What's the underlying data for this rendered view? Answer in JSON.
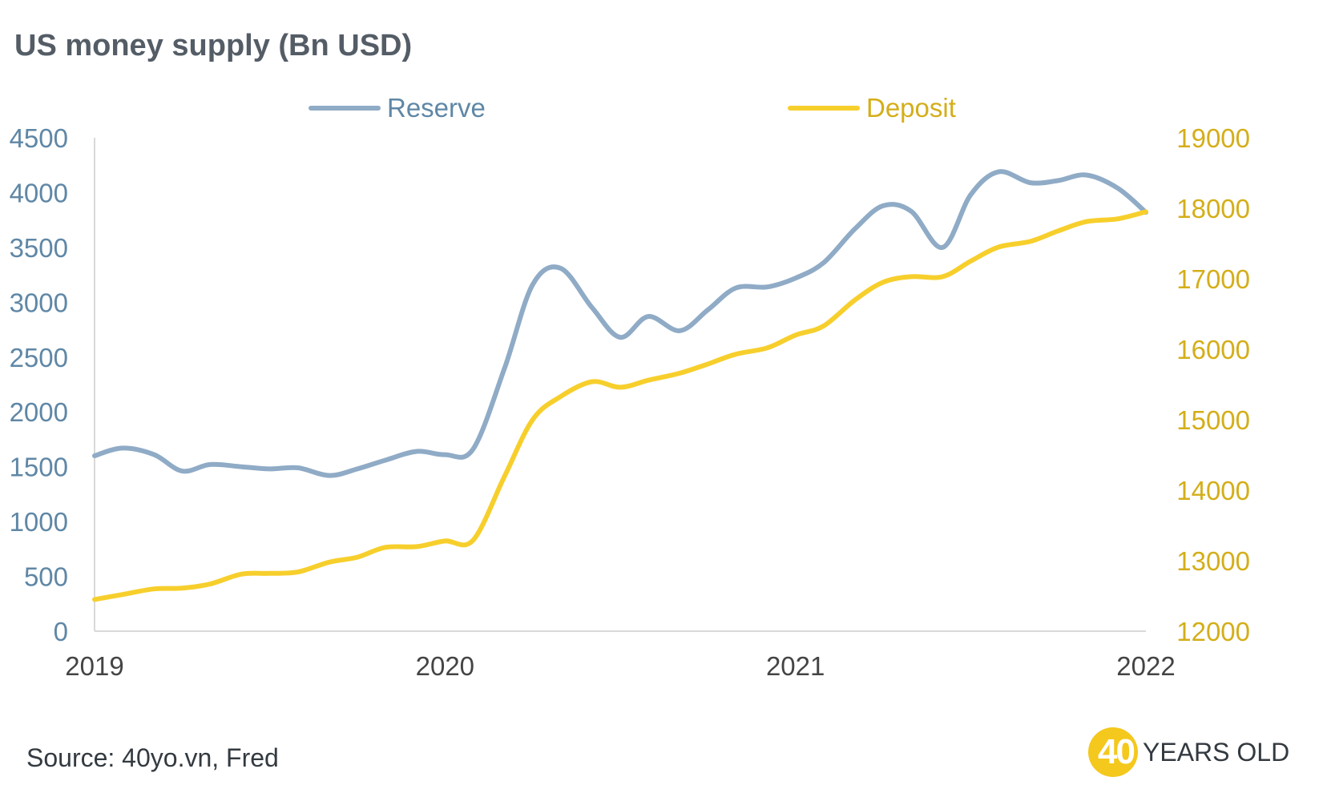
{
  "title": "US money supply (Bn USD)",
  "source": "Source: 40yo.vn, Fred",
  "logo": {
    "number": "40",
    "text": "YEARS OLD"
  },
  "colors": {
    "reserve": "#8fabc6",
    "deposit": "#f7cf2c",
    "left_axis": "#5f87a6",
    "right_axis": "#d4ae19",
    "x_axis": "#444444"
  },
  "chart_data": {
    "type": "line",
    "title": "US money supply (Bn USD)",
    "legend_position": "top",
    "grid": false,
    "x_ticks": [
      "2019",
      "2020",
      "2021",
      "2022"
    ],
    "x_range": [
      2019,
      2022
    ],
    "y_left": {
      "range": [
        0,
        4500
      ],
      "ticks": [
        "0",
        "500",
        "1000",
        "1500",
        "2000",
        "2500",
        "3000",
        "3500",
        "4000",
        "4500"
      ]
    },
    "y_right": {
      "range": [
        12000,
        19000
      ],
      "ticks": [
        "12000",
        "13000",
        "14000",
        "15000",
        "16000",
        "17000",
        "18000",
        "19000"
      ]
    },
    "series": [
      {
        "name": "Reserve",
        "axis": "left",
        "x": [
          2019.0,
          2019.08,
          2019.17,
          2019.25,
          2019.33,
          2019.42,
          2019.5,
          2019.58,
          2019.67,
          2019.75,
          2019.83,
          2019.92,
          2020.0,
          2020.08,
          2020.17,
          2020.25,
          2020.33,
          2020.42,
          2020.5,
          2020.58,
          2020.67,
          2020.75,
          2020.83,
          2020.92,
          2021.0,
          2021.08,
          2021.17,
          2021.25,
          2021.33,
          2021.42,
          2021.5,
          2021.58,
          2021.67,
          2021.75,
          2021.83,
          2021.92,
          2022.0
        ],
        "y": [
          1600,
          1670,
          1610,
          1460,
          1520,
          1500,
          1480,
          1490,
          1420,
          1480,
          1560,
          1640,
          1610,
          1660,
          2400,
          3160,
          3310,
          2950,
          2680,
          2870,
          2740,
          2930,
          3130,
          3140,
          3220,
          3360,
          3670,
          3880,
          3830,
          3500,
          3980,
          4190,
          4090,
          4110,
          4160,
          4040,
          3820
        ]
      },
      {
        "name": "Deposit",
        "axis": "right",
        "x": [
          2019.0,
          2019.08,
          2019.17,
          2019.25,
          2019.33,
          2019.42,
          2019.5,
          2019.58,
          2019.67,
          2019.75,
          2019.83,
          2019.92,
          2020.0,
          2020.08,
          2020.17,
          2020.25,
          2020.33,
          2020.42,
          2020.5,
          2020.58,
          2020.67,
          2020.75,
          2020.83,
          2020.92,
          2021.0,
          2021.08,
          2021.17,
          2021.25,
          2021.33,
          2021.42,
          2021.5,
          2021.58,
          2021.67,
          2021.75,
          2021.83,
          2021.92,
          2022.0
        ],
        "y": [
          12450,
          12520,
          12600,
          12610,
          12670,
          12810,
          12820,
          12840,
          12980,
          13050,
          13190,
          13200,
          13280,
          13290,
          14200,
          15000,
          15330,
          15540,
          15460,
          15560,
          15660,
          15790,
          15930,
          16020,
          16200,
          16330,
          16700,
          16950,
          17030,
          17030,
          17250,
          17450,
          17530,
          17680,
          17810,
          17850,
          17950
        ]
      }
    ]
  }
}
